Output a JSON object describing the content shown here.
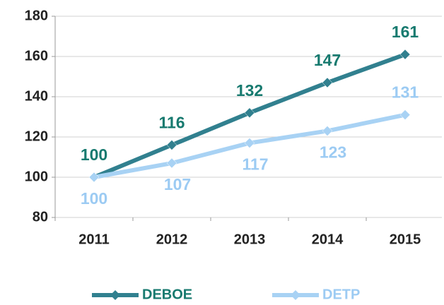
{
  "chart_data": {
    "type": "line",
    "categories": [
      "2011",
      "2012",
      "2013",
      "2014",
      "2015"
    ],
    "series": [
      {
        "name": "DEBOE",
        "color": "#31808f",
        "label_color": "#177a6f",
        "values": [
          100,
          116,
          132,
          147,
          161
        ]
      },
      {
        "name": "DETP",
        "color": "#a8d2f4",
        "label_color": "#9ccbf3",
        "values": [
          100,
          107,
          117,
          123,
          131
        ]
      }
    ],
    "ylim": [
      80,
      180
    ],
    "yticks": [
      80,
      100,
      120,
      140,
      160,
      180
    ],
    "grid": true
  }
}
